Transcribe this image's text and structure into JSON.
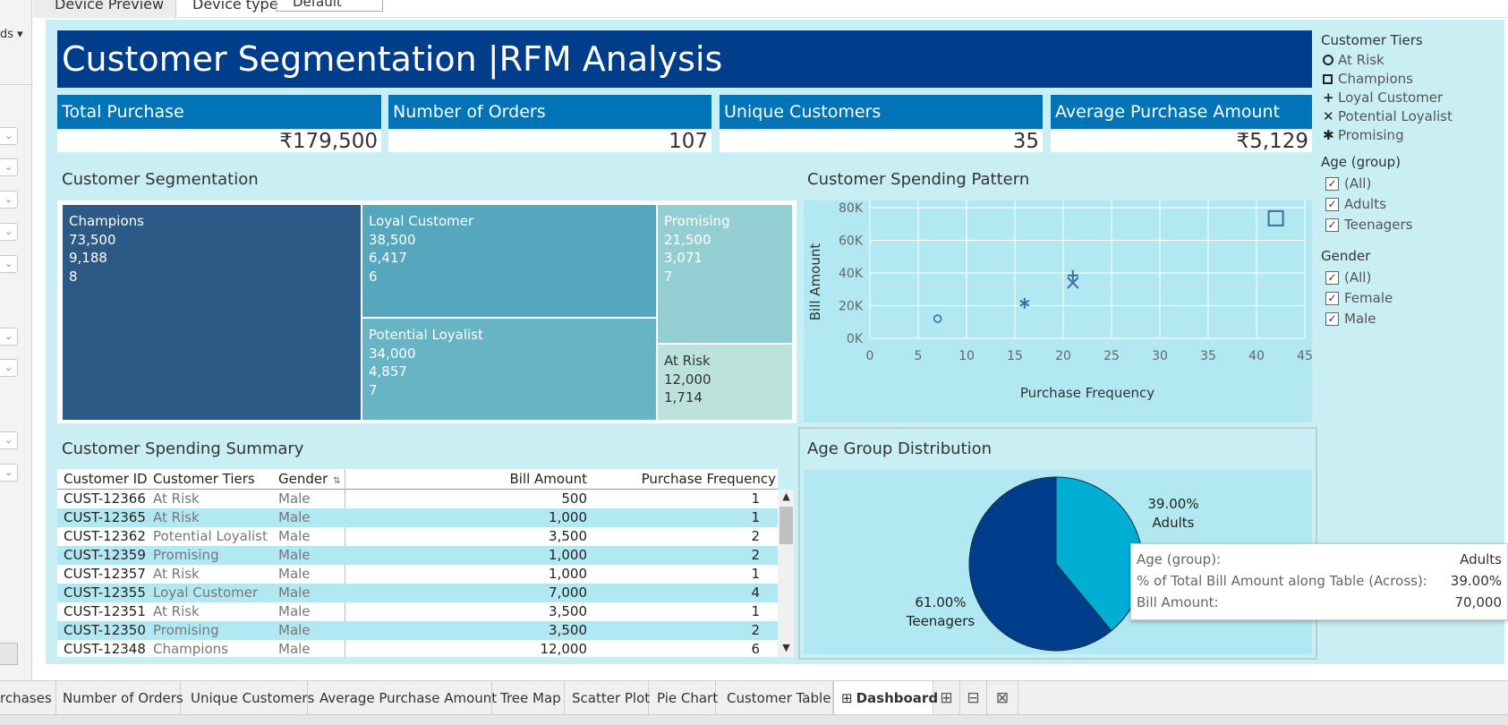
{
  "top_strip": {
    "device_preview": "Device Preview",
    "device_type_label": "Device type",
    "device_type_value": "Default"
  },
  "sidebar": {
    "menu_label": "ds ▾"
  },
  "dashboard": {
    "title": "Customer Segmentation |RFM Analysis",
    "kpis": [
      {
        "label": "Total Purchase",
        "value": "₹179,500"
      },
      {
        "label": "Number of Orders",
        "value": "107"
      },
      {
        "label": "Unique Customers",
        "value": "35"
      },
      {
        "label": "Average Purchase Amount",
        "value": "₹5,129"
      }
    ],
    "treemap": {
      "title": "Customer Segmentation",
      "cells": [
        {
          "name": "Champions",
          "bill": "73,500",
          "avg": "9,188",
          "count": "8",
          "color": "#2c5986"
        },
        {
          "name": "Loyal Customer",
          "bill": "38,500",
          "avg": "6,417",
          "count": "6",
          "color": "#55a7bd"
        },
        {
          "name": "Promising",
          "bill": "21,500",
          "avg": "3,071",
          "count": "7",
          "color": "#93cfd2"
        },
        {
          "name": "Potential Loyalist",
          "bill": "34,000",
          "avg": "4,857",
          "count": "7",
          "color": "#67b5c4"
        },
        {
          "name": "At Risk",
          "bill": "12,000",
          "avg": "1,714",
          "count": "",
          "color": "#bce3db"
        }
      ]
    },
    "scatter": {
      "title": "Customer Spending Pattern"
    },
    "table": {
      "title": "Customer Spending Summary",
      "columns": [
        "Customer ID",
        "Customer Tiers",
        "Gender",
        "Bill Amount",
        "Purchase Frequency"
      ],
      "rows": [
        [
          "CUST-12366",
          "At Risk",
          "Male",
          "500",
          "1"
        ],
        [
          "CUST-12365",
          "At Risk",
          "Male",
          "1,000",
          "1"
        ],
        [
          "CUST-12362",
          "Potential Loyalist",
          "Male",
          "3,500",
          "2"
        ],
        [
          "CUST-12359",
          "Promising",
          "Male",
          "1,000",
          "2"
        ],
        [
          "CUST-12357",
          "At Risk",
          "Male",
          "1,000",
          "1"
        ],
        [
          "CUST-12355",
          "Loyal Customer",
          "Male",
          "7,000",
          "4"
        ],
        [
          "CUST-12351",
          "At Risk",
          "Male",
          "3,500",
          "1"
        ],
        [
          "CUST-12350",
          "Promising",
          "Male",
          "3,500",
          "2"
        ],
        [
          "CUST-12348",
          "Champions",
          "Male",
          "12,000",
          "6"
        ]
      ]
    },
    "pie": {
      "title": "Age Group Distribution",
      "adults_pct": "39.00%",
      "adults": "Adults",
      "teen_pct": "61.00%",
      "teen": "Teenagers"
    },
    "legend": {
      "tiers_title": "Customer Tiers",
      "tiers": [
        "At Risk",
        "Champions",
        "Loyal Customer",
        "Potential Loyalist",
        "Promising"
      ],
      "age_title": "Age (group)",
      "age_options": [
        "(All)",
        "Adults",
        "Teenagers"
      ],
      "gender_title": "Gender",
      "gender_options": [
        "(All)",
        "Female",
        "Male"
      ]
    },
    "tooltip": {
      "k1": "Age (group):",
      "v1": "Adults",
      "k2": "% of Total Bill Amount along Table (Across):",
      "v2": "39.00%",
      "k3": "Bill Amount:",
      "v3": "70,000"
    },
    "colors": {
      "title_bg": "#003d8b",
      "kpi_bg": "#0074b7",
      "canvas": "#c9eef4",
      "plot_bg": "#b2e8f2",
      "pie_adults": "#00aed4",
      "pie_teen": "#003d8b",
      "row_alt": "#b2e8f2"
    }
  },
  "chart_data": [
    {
      "type": "scatter",
      "title": "Customer Spending Pattern",
      "xlabel": "Purchase Frequency",
      "ylabel": "Bill Amount",
      "x_ticks": [
        "0",
        "5",
        "10",
        "15",
        "20",
        "25",
        "30",
        "35",
        "40",
        "45"
      ],
      "y_ticks": [
        "0K",
        "20K",
        "40K",
        "60K",
        "80K"
      ],
      "xlim": [
        0,
        45
      ],
      "ylim": [
        0,
        80000
      ],
      "grid": true,
      "points": [
        {
          "tier": "At Risk",
          "shape": "circle",
          "x": 7,
          "y": 12000
        },
        {
          "tier": "Champions",
          "shape": "square",
          "x": 42,
          "y": 73500
        },
        {
          "tier": "Loyal Customer",
          "shape": "plus",
          "x": 21,
          "y": 38500
        },
        {
          "tier": "Potential Loyalist",
          "shape": "cross",
          "x": 21,
          "y": 34000
        },
        {
          "tier": "Promising",
          "shape": "asterisk",
          "x": 16,
          "y": 21500
        }
      ]
    },
    {
      "type": "pie",
      "title": "Age Group Distribution",
      "labels": [
        "Adults",
        "Teenagers"
      ],
      "values": [
        39.0,
        61.0
      ]
    }
  ],
  "bottom_tabs": [
    "rchases",
    "Number of Orders",
    "Unique Customers",
    "Average Purchase Amount",
    "Tree Map",
    "Scatter Plot",
    "Pie Chart",
    "Customer Table",
    "Dashboard"
  ]
}
